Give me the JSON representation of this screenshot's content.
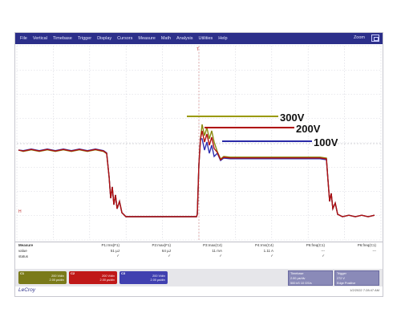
{
  "menu": {
    "items": [
      "File",
      "Vertical",
      "Timebase",
      "Trigger",
      "Display",
      "Cursors",
      "Measure",
      "Math",
      "Analysis",
      "Utilities",
      "Help"
    ],
    "zoom_label": "Zoom"
  },
  "annotations": [
    {
      "label": "300V",
      "color": "#9a9a00"
    },
    {
      "label": "200V",
      "color": "#b00000"
    },
    {
      "label": "100V",
      "color": "#2a2aa8"
    }
  ],
  "traces": {
    "colors": {
      "t300": "#8a8a10",
      "t200": "#b01010",
      "t100": "#3030b0"
    },
    "marker_left": "H",
    "marker_mid": "T"
  },
  "measure": {
    "row_labels": [
      "Measure",
      "value",
      "status"
    ],
    "columns": [
      {
        "name": "P1:rms(F1)",
        "value": "51 µJ",
        "status": "✓"
      },
      {
        "name": "P2:max(F1)",
        "value": "64 µJ",
        "status": "✓"
      },
      {
        "name": "P3:max(C4)",
        "value": "11 mA",
        "status": "✓"
      },
      {
        "name": "P4:rms(C4)",
        "value": "1.11 A",
        "status": "✓"
      },
      {
        "name": "P5:freq(C1)",
        "value": "---",
        "status": "✓"
      },
      {
        "name": "P6:freq(C1)",
        "value": "---",
        "status": ""
      }
    ]
  },
  "channels": [
    {
      "name": "C1",
      "line1": "200 V/div",
      "line2": "2.00 µs/div",
      "color": "#7a7a1a"
    },
    {
      "name": "C2",
      "line1": "200 V/div",
      "line2": "2.00 µs/div",
      "color": "#c01818"
    },
    {
      "name": "C3",
      "line1": "200 V/div",
      "line2": "2.00 µs/div",
      "color": "#4040b0"
    }
  ],
  "timebase": {
    "title": "Timebase",
    "value": "0.00 µs",
    "line2": "2.00 µs/div",
    "line3": "500 kS  10 GS/s"
  },
  "trigger": {
    "title": "Trigger",
    "value": "Auto",
    "line2": "272 V",
    "line3": "Edge  Positive"
  },
  "brand": "LeCroy",
  "datetime": "1/2/2022 7:28:47 AM"
}
